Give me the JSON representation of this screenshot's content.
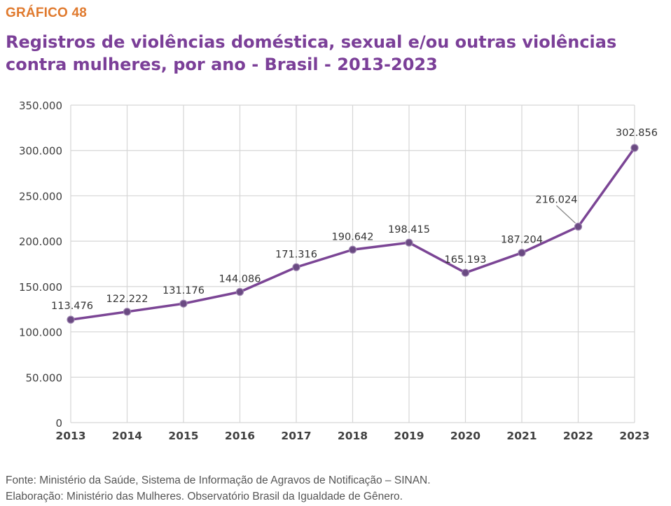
{
  "header": {
    "label": "GRÁFICO 48",
    "title": "Registros de violências doméstica, sexual e/ou outras violências contra mulheres, por ano - Brasil - 2013-2023"
  },
  "footer": {
    "source": "Fonte: Ministério da Saúde, Sistema de Informação de Agravos de Notificação – SINAN.",
    "credit": "Elaboração: Ministério das Mulheres. Observatório Brasil da Igualdade de Gênero."
  },
  "colors": {
    "line": "#7b4595",
    "marker": "#6a4a82",
    "title": "#7b3f98",
    "label": "#e07a2e",
    "grid": "#d6d6d6"
  },
  "chart_data": {
    "type": "line",
    "title": "Registros de violências doméstica, sexual e/ou outras violências contra mulheres, por ano - Brasil - 2013-2023",
    "xlabel": "",
    "ylabel": "",
    "ylim": [
      0,
      350000
    ],
    "yticks": [
      0,
      50000,
      100000,
      150000,
      200000,
      250000,
      300000,
      350000
    ],
    "ytick_labels": [
      "0",
      "50.000",
      "100.000",
      "150.000",
      "200.000",
      "250.000",
      "300.000",
      "350.000"
    ],
    "categories": [
      "2013",
      "2014",
      "2015",
      "2016",
      "2017",
      "2018",
      "2019",
      "2020",
      "2021",
      "2022",
      "2023"
    ],
    "values": [
      113476,
      122222,
      131176,
      144086,
      171316,
      190642,
      198415,
      165193,
      187204,
      216024,
      302856
    ],
    "data_labels": [
      "113.476",
      "122.222",
      "131.176",
      "144.086",
      "171.316",
      "190.642",
      "198.415",
      "165.193",
      "187.204",
      "216.024",
      "302.856"
    ],
    "grid": true,
    "legend": "none"
  }
}
